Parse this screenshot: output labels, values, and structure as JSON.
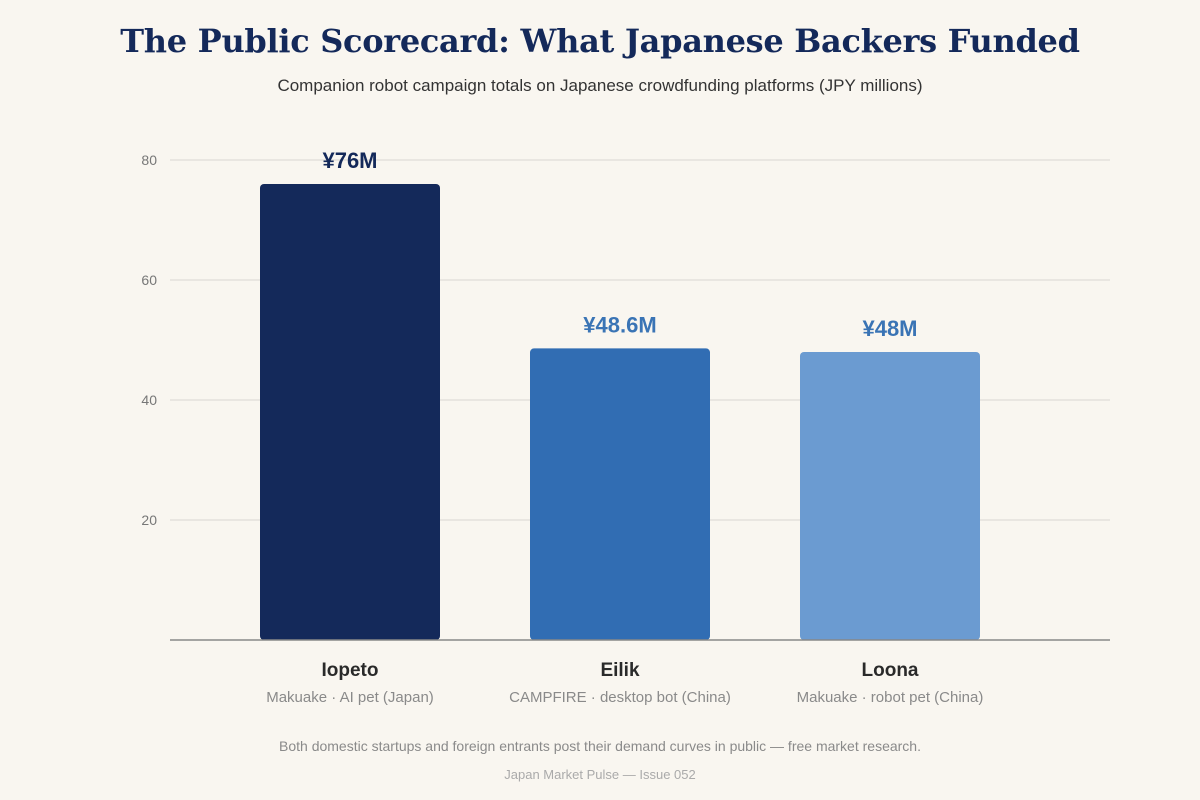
{
  "header": {
    "title": "The Public Scorecard: What Japanese Backers Funded",
    "subtitle": "Companion robot campaign totals on Japanese crowdfunding platforms (JPY millions)"
  },
  "chart_data": {
    "type": "bar",
    "title": "The Public Scorecard: What Japanese Backers Funded",
    "subtitle": "Companion robot campaign totals on Japanese crowdfunding platforms (JPY millions)",
    "xlabel": "",
    "ylabel": "",
    "ylim": [
      0,
      80
    ],
    "yticks": [
      20,
      40,
      60,
      80
    ],
    "grid": true,
    "legend": "none",
    "categories": [
      "Iopeto",
      "Eilik",
      "Loona"
    ],
    "category_details": [
      "Makuake · AI pet (Japan)",
      "CAMPFIRE · desktop bot (China)",
      "Makuake · robot pet (China)"
    ],
    "values": [
      76,
      48.6,
      48
    ],
    "value_labels": [
      "¥76M",
      "¥48.6M",
      "¥48M"
    ],
    "bar_colors": [
      "#14295a",
      "#316db3",
      "#6b9bd1"
    ],
    "label_colors": [
      "#14295a",
      "#3a74b5",
      "#3a74b5"
    ]
  },
  "footer": {
    "note": "Both domestic startups and foreign entrants post their demand curves in public — free market research.",
    "source": "Japan Market Pulse — Issue 052"
  },
  "colors": {
    "background": "#f9f6f0",
    "title": "#14295a",
    "gridline": "#e4e1dc",
    "axis": "#888888",
    "tick_text": "#777777",
    "category_text": "#2a2a2a",
    "detail_text": "#8a8a8a"
  }
}
